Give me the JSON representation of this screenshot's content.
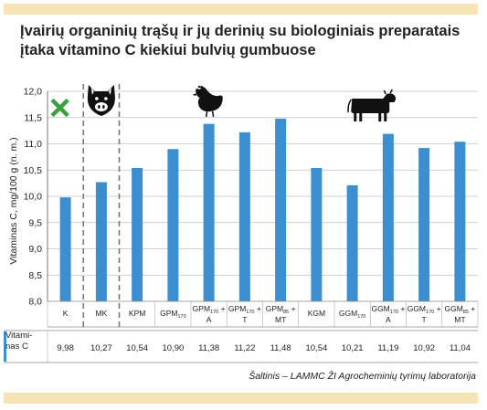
{
  "title_line1": "Įvairių organinių trąšų ir jų derinių su biologiniais preparatais",
  "title_line2": "įtaka vitamino C kiekiui bulvių gumbuose",
  "row_label_line1": "Vitami-",
  "row_label_line2": "nas C",
  "source": "Šaltinis – LAMMC ŽI Agrocheminių tyrimų laboratorija",
  "colors": {
    "bar": "#3b8fd0",
    "band": "#f6e3b6",
    "row_marker": "#3b8fd0",
    "cross": "#3aa040",
    "grid": "#bfbfbf"
  },
  "icons": [
    "green-cross-icon",
    "pig-icon",
    "chicken-icon",
    "cow-icon"
  ],
  "chart_data": {
    "type": "bar",
    "ylabel": "Vitaminas C, mg/100 g (n. m.)",
    "ylim": [
      8.0,
      12.0
    ],
    "yticks": [
      "8,0",
      "8,5",
      "9,0",
      "9,5",
      "10,0",
      "10,5",
      "11,0",
      "11,5",
      "12,0"
    ],
    "grid": true,
    "groups": [
      {
        "label": "Control",
        "icon": "green-cross-icon",
        "categories": [
          "K"
        ]
      },
      {
        "label": "Pig manure",
        "icon": "pig-icon",
        "categories": [
          "MK"
        ]
      },
      {
        "label": "Poultry manure",
        "icon": "chicken-icon",
        "categories": [
          "KPM",
          "GPM170",
          "GPM170 + A",
          "GPM170 + T",
          "GPM85 + MT"
        ]
      },
      {
        "label": "Cattle manure",
        "icon": "cow-icon",
        "categories": [
          "KGM",
          "GGM170",
          "GGM170 + A",
          "GGM170 + T",
          "GGM85 + MT"
        ]
      }
    ],
    "categories": [
      {
        "base": "K",
        "sub": "",
        "suffix": ""
      },
      {
        "base": "MK",
        "sub": "",
        "suffix": ""
      },
      {
        "base": "KPM",
        "sub": "",
        "suffix": ""
      },
      {
        "base": "GPM",
        "sub": "170",
        "suffix": ""
      },
      {
        "base": "GPM",
        "sub": "170",
        "suffix": " +",
        "line2": "A"
      },
      {
        "base": "GPM",
        "sub": "170",
        "suffix": " +",
        "line2": "T"
      },
      {
        "base": "GPM",
        "sub": "85",
        "suffix": " +",
        "line2": "MT"
      },
      {
        "base": "KGM",
        "sub": "",
        "suffix": ""
      },
      {
        "base": "GGM",
        "sub": "170",
        "suffix": ""
      },
      {
        "base": "GGM",
        "sub": "170",
        "suffix": " +",
        "line2": "A"
      },
      {
        "base": "GGM",
        "sub": "170",
        "suffix": " +",
        "line2": "T"
      },
      {
        "base": "GGM",
        "sub": "85",
        "suffix": " +",
        "line2": "MT"
      }
    ],
    "values": [
      9.98,
      10.27,
      10.54,
      10.9,
      11.38,
      11.22,
      11.48,
      10.54,
      10.21,
      11.19,
      10.92,
      11.04
    ],
    "value_labels": [
      "9,98",
      "10,27",
      "10,54",
      "10,90",
      "11,38",
      "11,22",
      "11,48",
      "10,54",
      "10,21",
      "11,19",
      "10,92",
      "11,04"
    ]
  }
}
